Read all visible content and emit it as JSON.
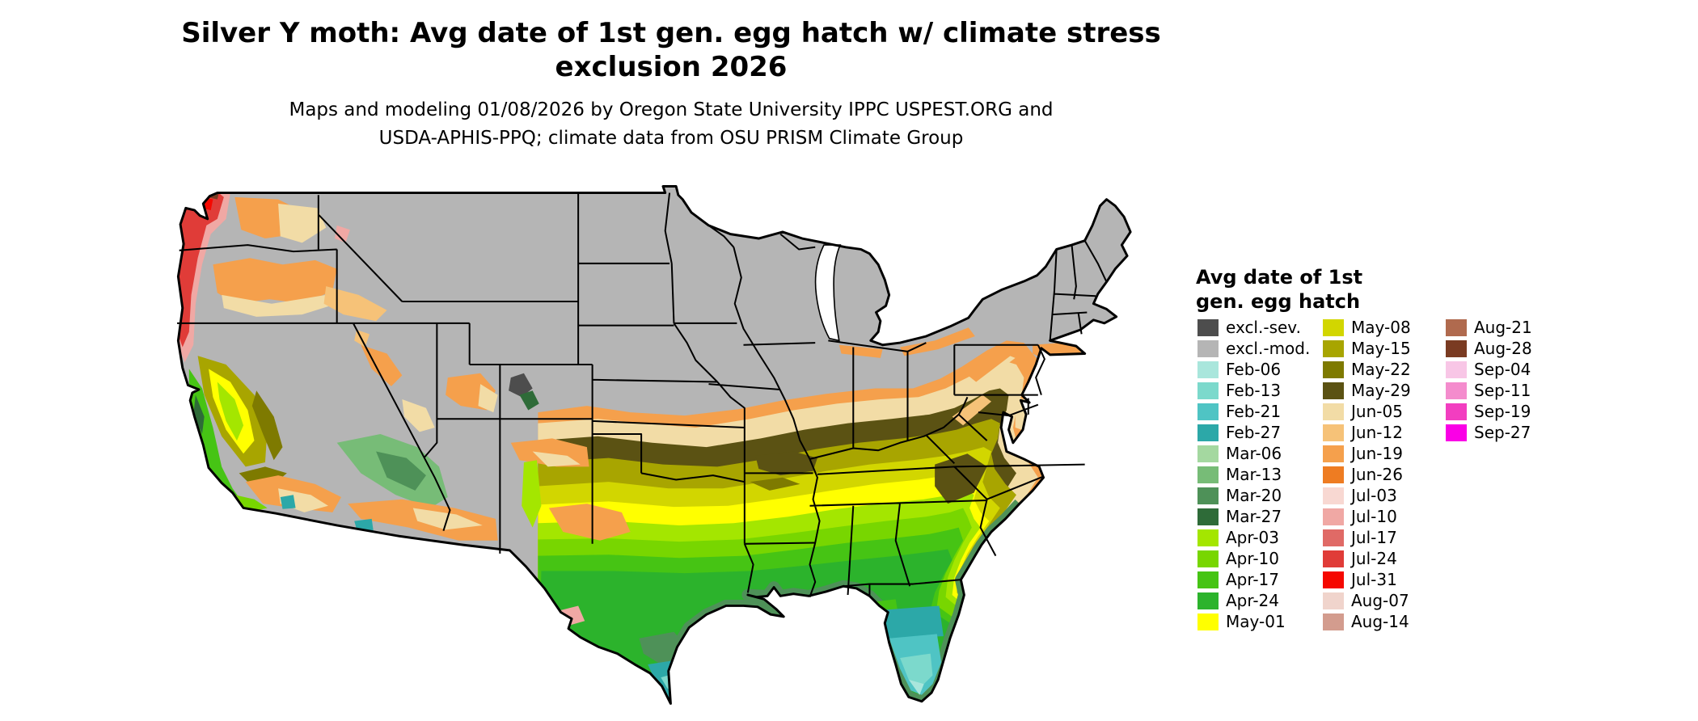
{
  "title": {
    "line1": "Silver Y moth: Avg date of 1st gen. egg hatch w/ climate stress",
    "line2": "exclusion 2026"
  },
  "subtitle": {
    "line1": "Maps and modeling 01/08/2026 by Oregon State University IPPC USPEST.ORG and",
    "line2": "USDA-APHIS-PPQ; climate data from OSU PRISM Climate Group"
  },
  "map": {
    "label": "Choropleth map of the contiguous United States"
  },
  "legend": {
    "title_line1": "Avg date of 1st",
    "title_line2": "gen. egg hatch",
    "columns": [
      [
        {
          "label": "excl.-sev.",
          "color": "#4D4D4D"
        },
        {
          "label": "excl.-mod.",
          "color": "#B5B5B5"
        },
        {
          "label": "Feb-06",
          "color": "#A9E6DC"
        },
        {
          "label": "Feb-13",
          "color": "#7CD9CC"
        },
        {
          "label": "Feb-21",
          "color": "#4FC4C4"
        },
        {
          "label": "Feb-27",
          "color": "#2CA8A8"
        },
        {
          "label": "Mar-06",
          "color": "#A4D8A0"
        },
        {
          "label": "Mar-13",
          "color": "#77BC77"
        },
        {
          "label": "Mar-20",
          "color": "#4E9158"
        },
        {
          "label": "Mar-27",
          "color": "#2E6B38"
        },
        {
          "label": "Apr-03",
          "color": "#A4E600"
        },
        {
          "label": "Apr-10",
          "color": "#78D600"
        },
        {
          "label": "Apr-17",
          "color": "#46C414"
        },
        {
          "label": "Apr-24",
          "color": "#2CB32C"
        },
        {
          "label": "May-01",
          "color": "#FFFF00"
        }
      ],
      [
        {
          "label": "May-08",
          "color": "#D2D600"
        },
        {
          "label": "May-15",
          "color": "#A8A500"
        },
        {
          "label": "May-22",
          "color": "#7E7A00"
        },
        {
          "label": "May-29",
          "color": "#5B5213"
        },
        {
          "label": "Jun-05",
          "color": "#F2DCA6"
        },
        {
          "label": "Jun-12",
          "color": "#F6C278"
        },
        {
          "label": "Jun-19",
          "color": "#F5A04C"
        },
        {
          "label": "Jun-26",
          "color": "#EE7C22"
        },
        {
          "label": "Jul-03",
          "color": "#F8D8D2"
        },
        {
          "label": "Jul-10",
          "color": "#F0A8A4"
        },
        {
          "label": "Jul-17",
          "color": "#E06A66"
        },
        {
          "label": "Jul-24",
          "color": "#E03C38"
        },
        {
          "label": "Jul-31",
          "color": "#F50800"
        },
        {
          "label": "Aug-07",
          "color": "#F0D4CC"
        },
        {
          "label": "Aug-14",
          "color": "#D39C8E"
        }
      ],
      [
        {
          "label": "Aug-21",
          "color": "#B06A4E"
        },
        {
          "label": "Aug-28",
          "color": "#7A3B22"
        },
        {
          "label": "Sep-04",
          "color": "#F8C6E6"
        },
        {
          "label": "Sep-11",
          "color": "#F48CCD"
        },
        {
          "label": "Sep-19",
          "color": "#F23EC0"
        },
        {
          "label": "Sep-27",
          "color": "#FA00E6"
        }
      ]
    ]
  },
  "colors": {
    "background": "#FFFFFF",
    "border": "#000000"
  }
}
